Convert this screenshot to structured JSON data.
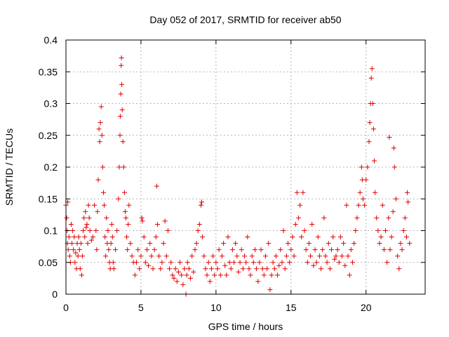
{
  "chart_data": {
    "type": "scatter",
    "title": "Day 052 of 2017, SRMTID for receiver ab50",
    "xlabel": "GPS time / hours",
    "ylabel": "SRMTID / TECUs",
    "xlim": [
      0,
      23.94
    ],
    "ylim": [
      0,
      0.4
    ],
    "xticks": [
      0,
      5,
      10,
      15,
      20
    ],
    "xtick_labels": [
      "0",
      "5",
      "10",
      "15",
      "20"
    ],
    "yticks": [
      0,
      0.05,
      0.1,
      0.15,
      0.2,
      0.25,
      0.3,
      0.35,
      0.4
    ],
    "ytick_labels": [
      "0",
      "0.05",
      "0.1",
      "0.15",
      "0.2",
      "0.25",
      "0.3",
      "0.35",
      "0.4"
    ],
    "grid": true,
    "marker": "+",
    "color": "#e00000",
    "series": [
      {
        "name": "SRMTID ab50",
        "points": [
          [
            0.0,
            0.14
          ],
          [
            0.05,
            0.12
          ],
          [
            0.08,
            0.1
          ],
          [
            0.1,
            0.08
          ],
          [
            0.12,
            0.145
          ],
          [
            0.15,
            0.07
          ],
          [
            0.2,
            0.09
          ],
          [
            0.25,
            0.06
          ],
          [
            0.3,
            0.05
          ],
          [
            0.35,
            0.11
          ],
          [
            0.4,
            0.08
          ],
          [
            0.45,
            0.1
          ],
          [
            0.5,
            0.07
          ],
          [
            0.55,
            0.09
          ],
          [
            0.6,
            0.05
          ],
          [
            0.65,
            0.065
          ],
          [
            0.7,
            0.04
          ],
          [
            0.75,
            0.08
          ],
          [
            0.8,
            0.06
          ],
          [
            0.85,
            0.09
          ],
          [
            0.9,
            0.07
          ],
          [
            0.95,
            0.04
          ],
          [
            1.0,
            0.08
          ],
          [
            1.05,
            0.03
          ],
          [
            1.1,
            0.06
          ],
          [
            1.15,
            0.1
          ],
          [
            1.2,
            0.12
          ],
          [
            1.25,
            0.09
          ],
          [
            1.3,
            0.13
          ],
          [
            1.35,
            0.105
          ],
          [
            1.4,
            0.11
          ],
          [
            1.45,
            0.08
          ],
          [
            1.5,
            0.14
          ],
          [
            1.55,
            0.12
          ],
          [
            1.6,
            0.1
          ],
          [
            1.7,
            0.085
          ],
          [
            1.8,
            0.09
          ],
          [
            1.9,
            0.14
          ],
          [
            2.0,
            0.1
          ],
          [
            2.05,
            0.07
          ],
          [
            2.1,
            0.13
          ],
          [
            2.15,
            0.18
          ],
          [
            2.2,
            0.26
          ],
          [
            2.25,
            0.24
          ],
          [
            2.3,
            0.27
          ],
          [
            2.35,
            0.295
          ],
          [
            2.4,
            0.25
          ],
          [
            2.45,
            0.2
          ],
          [
            2.5,
            0.16
          ],
          [
            2.55,
            0.14
          ],
          [
            2.6,
            0.09
          ],
          [
            2.65,
            0.06
          ],
          [
            2.7,
            0.12
          ],
          [
            2.75,
            0.08
          ],
          [
            2.8,
            0.1
          ],
          [
            2.85,
            0.07
          ],
          [
            2.9,
            0.05
          ],
          [
            2.95,
            0.04
          ],
          [
            3.0,
            0.08
          ],
          [
            3.05,
            0.11
          ],
          [
            3.1,
            0.09
          ],
          [
            3.15,
            0.05
          ],
          [
            3.2,
            0.04
          ],
          [
            3.3,
            0.07
          ],
          [
            3.4,
            0.1
          ],
          [
            3.5,
            0.15
          ],
          [
            3.55,
            0.2
          ],
          [
            3.6,
            0.25
          ],
          [
            3.62,
            0.28
          ],
          [
            3.65,
            0.315
          ],
          [
            3.68,
            0.36
          ],
          [
            3.7,
            0.372
          ],
          [
            3.72,
            0.33
          ],
          [
            3.75,
            0.29
          ],
          [
            3.8,
            0.24
          ],
          [
            3.85,
            0.2
          ],
          [
            3.9,
            0.16
          ],
          [
            3.95,
            0.13
          ],
          [
            4.0,
            0.12
          ],
          [
            4.05,
            0.09
          ],
          [
            4.1,
            0.07
          ],
          [
            4.15,
            0.11
          ],
          [
            4.2,
            0.14
          ],
          [
            4.3,
            0.08
          ],
          [
            4.4,
            0.06
          ],
          [
            4.5,
            0.05
          ],
          [
            4.6,
            0.03
          ],
          [
            4.7,
            0.05
          ],
          [
            4.8,
            0.07
          ],
          [
            4.9,
            0.04
          ],
          [
            5.0,
            0.06
          ],
          [
            5.05,
            0.12
          ],
          [
            5.1,
            0.115
          ],
          [
            5.2,
            0.09
          ],
          [
            5.3,
            0.05
          ],
          [
            5.4,
            0.07
          ],
          [
            5.5,
            0.045
          ],
          [
            5.6,
            0.08
          ],
          [
            5.7,
            0.06
          ],
          [
            5.8,
            0.04
          ],
          [
            5.9,
            0.07
          ],
          [
            6.0,
            0.09
          ],
          [
            6.05,
            0.17
          ],
          [
            6.1,
            0.11
          ],
          [
            6.2,
            0.06
          ],
          [
            6.3,
            0.04
          ],
          [
            6.4,
            0.05
          ],
          [
            6.5,
            0.08
          ],
          [
            6.6,
            0.115
          ],
          [
            6.7,
            0.06
          ],
          [
            6.8,
            0.1
          ],
          [
            6.9,
            0.04
          ],
          [
            7.0,
            0.05
          ],
          [
            7.1,
            0.03
          ],
          [
            7.2,
            0.025
          ],
          [
            7.3,
            0.04
          ],
          [
            7.4,
            0.02
          ],
          [
            7.5,
            0.035
          ],
          [
            7.6,
            0.05
          ],
          [
            7.7,
            0.03
          ],
          [
            7.8,
            0.015
          ],
          [
            7.9,
            0.04
          ],
          [
            8.0,
            0.0
          ],
          [
            8.05,
            0.03
          ],
          [
            8.1,
            0.05
          ],
          [
            8.2,
            0.04
          ],
          [
            8.3,
            0.025
          ],
          [
            8.4,
            0.06
          ],
          [
            8.5,
            0.035
          ],
          [
            8.6,
            0.07
          ],
          [
            8.7,
            0.08
          ],
          [
            8.8,
            0.1
          ],
          [
            8.9,
            0.11
          ],
          [
            9.0,
            0.14
          ],
          [
            9.05,
            0.145
          ],
          [
            9.1,
            0.09
          ],
          [
            9.2,
            0.06
          ],
          [
            9.3,
            0.04
          ],
          [
            9.4,
            0.03
          ],
          [
            9.5,
            0.05
          ],
          [
            9.6,
            0.02
          ],
          [
            9.7,
            0.04
          ],
          [
            9.8,
            0.06
          ],
          [
            9.9,
            0.03
          ],
          [
            10.0,
            0.05
          ],
          [
            10.1,
            0.04
          ],
          [
            10.2,
            0.07
          ],
          [
            10.3,
            0.03
          ],
          [
            10.4,
            0.06
          ],
          [
            10.5,
            0.08
          ],
          [
            10.6,
            0.045
          ],
          [
            10.7,
            0.03
          ],
          [
            10.8,
            0.09
          ],
          [
            10.9,
            0.05
          ],
          [
            11.0,
            0.04
          ],
          [
            11.1,
            0.07
          ],
          [
            11.2,
            0.05
          ],
          [
            11.3,
            0.08
          ],
          [
            11.4,
            0.06
          ],
          [
            11.5,
            0.035
          ],
          [
            11.6,
            0.05
          ],
          [
            11.7,
            0.07
          ],
          [
            11.8,
            0.04
          ],
          [
            11.9,
            0.06
          ],
          [
            12.0,
            0.05
          ],
          [
            12.1,
            0.09
          ],
          [
            12.2,
            0.04
          ],
          [
            12.3,
            0.03
          ],
          [
            12.4,
            0.06
          ],
          [
            12.5,
            0.05
          ],
          [
            12.6,
            0.07
          ],
          [
            12.7,
            0.04
          ],
          [
            12.8,
            0.02
          ],
          [
            12.9,
            0.05
          ],
          [
            13.0,
            0.07
          ],
          [
            13.1,
            0.04
          ],
          [
            13.2,
            0.03
          ],
          [
            13.3,
            0.06
          ],
          [
            13.4,
            0.04
          ],
          [
            13.5,
            0.08
          ],
          [
            13.6,
            0.007
          ],
          [
            13.7,
            0.03
          ],
          [
            13.8,
            0.05
          ],
          [
            13.9,
            0.04
          ],
          [
            14.0,
            0.06
          ],
          [
            14.1,
            0.03
          ],
          [
            14.2,
            0.045
          ],
          [
            14.3,
            0.07
          ],
          [
            14.4,
            0.05
          ],
          [
            14.5,
            0.1
          ],
          [
            14.6,
            0.04
          ],
          [
            14.7,
            0.06
          ],
          [
            14.8,
            0.08
          ],
          [
            14.9,
            0.05
          ],
          [
            15.0,
            0.07
          ],
          [
            15.1,
            0.09
          ],
          [
            15.2,
            0.06
          ],
          [
            15.3,
            0.11
          ],
          [
            15.4,
            0.16
          ],
          [
            15.5,
            0.12
          ],
          [
            15.6,
            0.14
          ],
          [
            15.7,
            0.09
          ],
          [
            15.8,
            0.16
          ],
          [
            15.9,
            0.1
          ],
          [
            16.0,
            0.07
          ],
          [
            16.1,
            0.05
          ],
          [
            16.2,
            0.08
          ],
          [
            16.3,
            0.06
          ],
          [
            16.4,
            0.11
          ],
          [
            16.5,
            0.045
          ],
          [
            16.6,
            0.07
          ],
          [
            16.7,
            0.05
          ],
          [
            16.8,
            0.09
          ],
          [
            16.9,
            0.06
          ],
          [
            17.0,
            0.04
          ],
          [
            17.1,
            0.07
          ],
          [
            17.2,
            0.12
          ],
          [
            17.3,
            0.06
          ],
          [
            17.4,
            0.05
          ],
          [
            17.5,
            0.08
          ],
          [
            17.6,
            0.04
          ],
          [
            17.7,
            0.07
          ],
          [
            17.8,
            0.09
          ],
          [
            17.9,
            0.055
          ],
          [
            18.0,
            0.06
          ],
          [
            18.1,
            0.07
          ],
          [
            18.2,
            0.05
          ],
          [
            18.3,
            0.09
          ],
          [
            18.4,
            0.06
          ],
          [
            18.5,
            0.08
          ],
          [
            18.6,
            0.045
          ],
          [
            18.7,
            0.14
          ],
          [
            18.8,
            0.06
          ],
          [
            18.9,
            0.03
          ],
          [
            19.0,
            0.07
          ],
          [
            19.1,
            0.05
          ],
          [
            19.2,
            0.08
          ],
          [
            19.3,
            0.1
          ],
          [
            19.4,
            0.12
          ],
          [
            19.5,
            0.14
          ],
          [
            19.6,
            0.16
          ],
          [
            19.7,
            0.2
          ],
          [
            19.75,
            0.18
          ],
          [
            19.8,
            0.15
          ],
          [
            19.9,
            0.14
          ],
          [
            20.0,
            0.18
          ],
          [
            20.1,
            0.2
          ],
          [
            20.2,
            0.24
          ],
          [
            20.25,
            0.27
          ],
          [
            20.3,
            0.3
          ],
          [
            20.35,
            0.34
          ],
          [
            20.4,
            0.355
          ],
          [
            20.45,
            0.3
          ],
          [
            20.5,
            0.26
          ],
          [
            20.55,
            0.21
          ],
          [
            20.6,
            0.16
          ],
          [
            20.7,
            0.12
          ],
          [
            20.8,
            0.1
          ],
          [
            20.9,
            0.08
          ],
          [
            21.0,
            0.09
          ],
          [
            21.1,
            0.14
          ],
          [
            21.2,
            0.07
          ],
          [
            21.3,
            0.1
          ],
          [
            21.4,
            0.05
          ],
          [
            21.5,
            0.12
          ],
          [
            21.55,
            0.247
          ],
          [
            21.6,
            0.07
          ],
          [
            21.7,
            0.09
          ],
          [
            21.8,
            0.13
          ],
          [
            21.85,
            0.23
          ],
          [
            21.9,
            0.2
          ],
          [
            22.0,
            0.15
          ],
          [
            22.1,
            0.06
          ],
          [
            22.2,
            0.04
          ],
          [
            22.3,
            0.08
          ],
          [
            22.4,
            0.07
          ],
          [
            22.5,
            0.1
          ],
          [
            22.6,
            0.12
          ],
          [
            22.7,
            0.09
          ],
          [
            22.75,
            0.16
          ],
          [
            22.8,
            0.145
          ],
          [
            22.9,
            0.08
          ]
        ]
      }
    ]
  }
}
